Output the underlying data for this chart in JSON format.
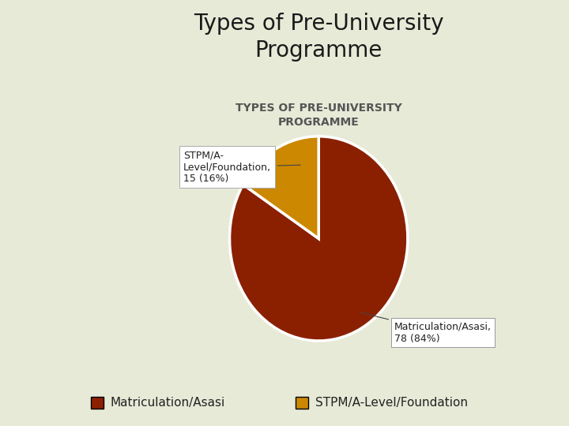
{
  "title_main": "Types of Pre-University\nProgramme",
  "title_sub": "TYPES OF PRE-UNIVERSITY\nPROGRAMME",
  "sizes": [
    78,
    15
  ],
  "labels": [
    "Matriculation/Asasi",
    "STPM/A-Level/Foundation"
  ],
  "colors": [
    "#8B2000",
    "#CC8800"
  ],
  "legend_colors": [
    "#8B2000",
    "#CC8800"
  ],
  "legend_labels": [
    "Matriculation/Asasi",
    "STPM/A-Level/Foundation"
  ],
  "bg_color": "#E8EAD8",
  "startangle": 90,
  "annotation_matric": "Matriculation/Asasi,\n78 (84%)",
  "annotation_stpm": "STPM/A-\nLevel/Foundation,\n15 (16%)"
}
